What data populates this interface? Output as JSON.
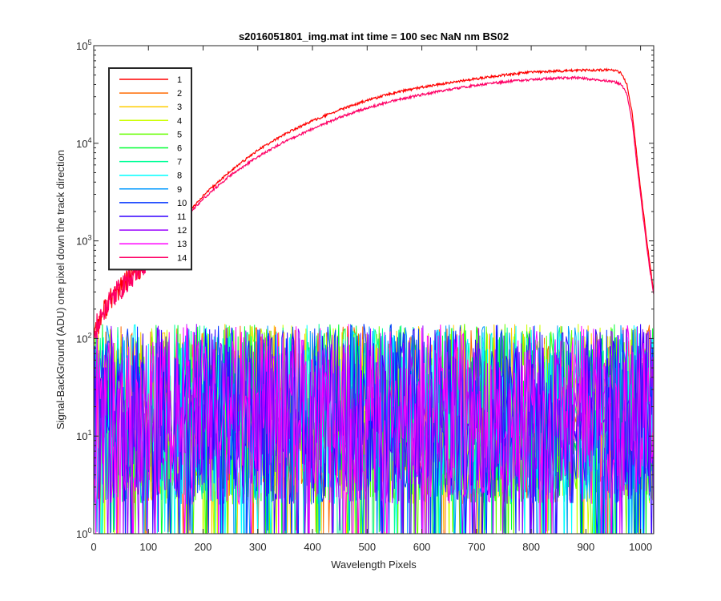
{
  "chart_data": {
    "type": "line",
    "title": "s2016051801_img.mat int time = 100 sec  NaN nm BS02",
    "xlabel": "Wavelength Pixels",
    "ylabel": "Signal-BackGround (ADU) one pixel down the track direction",
    "y_scale": "log",
    "xlim": [
      0,
      1024
    ],
    "ylim": [
      1,
      100000
    ],
    "x_ticks": [
      0,
      100,
      200,
      300,
      400,
      500,
      600,
      700,
      800,
      900,
      1000
    ],
    "y_ticks": [
      {
        "value": 1,
        "base": "10",
        "exp": "0"
      },
      {
        "value": 10,
        "base": "10",
        "exp": "1"
      },
      {
        "value": 100,
        "base": "10",
        "exp": "2"
      },
      {
        "value": 1000,
        "base": "10",
        "exp": "3"
      },
      {
        "value": 10000,
        "base": "10",
        "exp": "4"
      },
      {
        "value": 100000,
        "base": "10",
        "exp": "5"
      }
    ],
    "grid": false,
    "legend_position": "top-left",
    "series": [
      {
        "name": "1",
        "color": "#ff0000",
        "kind": "signal",
        "x": [
          0,
          10,
          20,
          30,
          50,
          70,
          90,
          100,
          130,
          160,
          200,
          250,
          300,
          350,
          400,
          450,
          500,
          550,
          600,
          650,
          700,
          750,
          800,
          850,
          900,
          940,
          955,
          965,
          975,
          985,
          995,
          1005,
          1015,
          1024
        ],
        "y": [
          120,
          150,
          200,
          250,
          330,
          440,
          560,
          650,
          1000,
          1600,
          2900,
          5200,
          8500,
          12500,
          17000,
          22000,
          27500,
          33000,
          37500,
          41500,
          46000,
          50000,
          53500,
          55000,
          56000,
          56500,
          55500,
          52000,
          40000,
          20000,
          6000,
          2000,
          700,
          300
        ]
      },
      {
        "name": "2",
        "color": "#ff6a00",
        "kind": "noise"
      },
      {
        "name": "3",
        "color": "#ffcc00",
        "kind": "noise"
      },
      {
        "name": "4",
        "color": "#ccff00",
        "kind": "noise"
      },
      {
        "name": "5",
        "color": "#66ff00",
        "kind": "noise"
      },
      {
        "name": "6",
        "color": "#00ff33",
        "kind": "noise"
      },
      {
        "name": "7",
        "color": "#00ff99",
        "kind": "noise"
      },
      {
        "name": "8",
        "color": "#00ffff",
        "kind": "noise"
      },
      {
        "name": "9",
        "color": "#0099ff",
        "kind": "noise"
      },
      {
        "name": "10",
        "color": "#0033ff",
        "kind": "noise"
      },
      {
        "name": "11",
        "color": "#3300ff",
        "kind": "noise"
      },
      {
        "name": "12",
        "color": "#9900ff",
        "kind": "noise"
      },
      {
        "name": "13",
        "color": "#ff00ff",
        "kind": "noise"
      },
      {
        "name": "14",
        "color": "#ff0066",
        "kind": "signal",
        "x": [
          0,
          10,
          20,
          30,
          50,
          70,
          90,
          100,
          130,
          160,
          200,
          250,
          300,
          350,
          400,
          450,
          500,
          550,
          600,
          650,
          700,
          750,
          800,
          850,
          880,
          900,
          940,
          955,
          965,
          975,
          985,
          995,
          1005,
          1015,
          1024
        ],
        "y": [
          120,
          150,
          200,
          250,
          330,
          440,
          560,
          650,
          1000,
          1550,
          2700,
          4700,
          7300,
          10500,
          14000,
          18500,
          23000,
          27500,
          31500,
          35500,
          39500,
          42500,
          45000,
          46500,
          47000,
          46000,
          43500,
          42000,
          40000,
          32000,
          16000,
          5000,
          1700,
          600,
          280
        ]
      }
    ]
  }
}
